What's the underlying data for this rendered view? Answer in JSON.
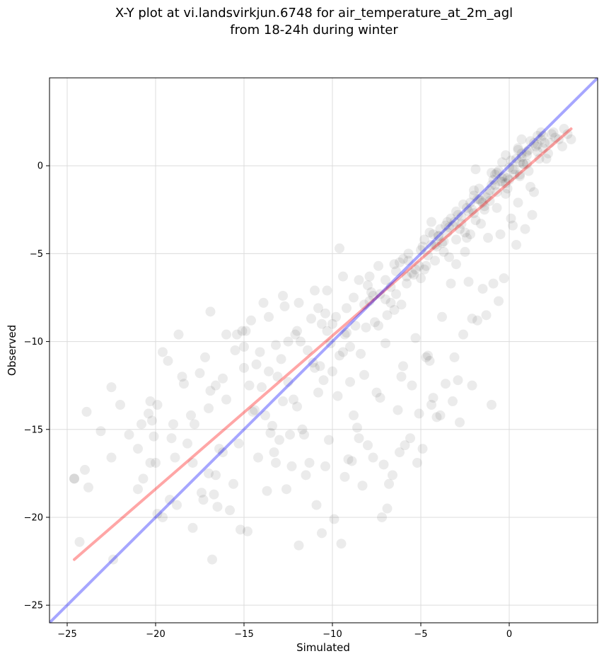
{
  "chart_data": {
    "type": "scatter",
    "title": [
      "X-Y plot at vi.landsvirkjun.6748 for air_temperature_at_2m_agl",
      "from 18-24h during winter"
    ],
    "xlabel": "Simulated",
    "ylabel": "Observed",
    "xlim": [
      -26,
      5
    ],
    "ylim": [
      -26,
      5
    ],
    "xticks": [
      -25,
      -20,
      -15,
      -10,
      -5,
      0
    ],
    "yticks": [
      -25,
      -20,
      -15,
      -10,
      -5,
      0
    ],
    "xtick_labels": [
      "−25",
      "−20",
      "−15",
      "−10",
      "−5",
      "0"
    ],
    "ytick_labels": [
      "−25",
      "−20",
      "−15",
      "−10",
      "−5",
      "0"
    ],
    "grid": true,
    "colors": {
      "points": "#000000",
      "fit_line": "#ff0000",
      "identity_line": "#0000ff",
      "grid": "#dcdcdc"
    },
    "series": [
      {
        "kind": "points",
        "x": [
          -24.6,
          -24.3,
          -24.0,
          -23.8,
          -23.1,
          -22.5,
          -22.5,
          -22.0,
          -21.5,
          -21.0,
          -20.7,
          -20.4,
          -20.0,
          -19.6,
          -19.3,
          -19.1,
          -18.8,
          -18.4,
          -18.0,
          -17.9,
          -17.4,
          -17.0,
          -16.8,
          -16.6,
          -16.5,
          -16.2,
          -21.0,
          -20.1,
          -19.2,
          -18.5,
          -17.8,
          -17.0,
          -16.2,
          -15.6,
          -15.0,
          -14.5,
          -14.0,
          -13.6,
          -13.2,
          -12.8,
          -12.5,
          -12.0,
          -11.6,
          -11.1,
          -10.8,
          -10.4,
          -10.1,
          -9.6,
          -9.2,
          -8.8,
          -8.2,
          -7.6,
          -7.3,
          -7.0,
          -6.5,
          -6.0,
          -5.8,
          -5.3,
          -4.8,
          -4.6,
          -4.2,
          -3.8,
          -3.5,
          -3.0,
          -2.5,
          -2.2,
          -1.9,
          -1.6,
          -1.1,
          -0.7,
          -0.4,
          -0.1,
          0.3,
          0.7,
          1.1,
          1.6,
          2.1,
          2.6,
          3.0,
          3.3,
          -19.0,
          -17.5,
          -16.0,
          -15.0,
          -14.1,
          -13.1,
          -12.0,
          -11.0,
          -10.0,
          -9.0,
          -8.1,
          -7.0,
          -6.1,
          -5.0,
          -4.0,
          -3.0,
          -2.0,
          -1.0,
          0.0,
          1.0,
          -22.4,
          -20.8,
          -19.9,
          -18.9,
          -17.3,
          -16.4,
          -15.3,
          -14.4,
          -13.4,
          -12.5,
          -11.4,
          -10.3,
          -9.4,
          -8.4,
          -7.4,
          -6.4,
          -5.4,
          -4.4,
          -3.4,
          -2.4,
          -1.4,
          -0.4,
          0.6,
          1.6,
          2.4,
          -20.3,
          -18.2,
          -16.9,
          -15.5,
          -14.7,
          -13.8,
          -12.9,
          -11.8,
          -10.7,
          -9.8,
          -8.7,
          -7.8,
          -6.7,
          -5.7,
          -4.7,
          -3.7,
          -2.7,
          -1.7,
          -0.7,
          0.3,
          -13.0,
          -12.2,
          -11.3,
          -10.5,
          -9.3,
          -8.5,
          -7.5,
          -6.3,
          -5.5,
          -4.5,
          -3.3,
          -2.3,
          -1.2,
          -0.2,
          0.8,
          1.8,
          -15.8,
          -14.2,
          -12.6,
          -11.7,
          -10.9,
          -9.9,
          -9.1,
          -8.3,
          -7.1,
          -6.2,
          -5.1,
          -4.1,
          -3.1,
          -2.1,
          -0.9,
          0.1,
          1.3,
          2.2,
          -17.9,
          -16.7,
          -15.2,
          -13.7,
          -12.3,
          -10.6,
          -9.5,
          -8.0,
          -6.8,
          -5.6,
          -4.3,
          -3.6,
          -2.6,
          -1.5,
          -0.5,
          0.5,
          1.4,
          2.8,
          -14.8,
          -13.3,
          -11.9,
          -10.2,
          -8.9,
          -7.7,
          -6.6,
          -5.2,
          -4.9,
          -3.9,
          -2.9,
          -1.8,
          -0.3,
          0.9,
          -12.4,
          -9.7,
          -8.6,
          -7.2,
          -6.9,
          -5.9,
          -4.4,
          -3.2,
          -2.1,
          -1.3,
          -0.6,
          0.4,
          1.2,
          -16.6,
          -15.4,
          -14.3,
          -13.5,
          -11.5,
          -10.0,
          -9.0,
          -7.9,
          -6.1,
          -4.7,
          -2.8,
          -1.0,
          0.2,
          1.9,
          -19.6,
          -18.7,
          -17.2,
          -16.0,
          -14.9,
          -13.9,
          -12.7,
          -11.2,
          -10.3,
          -9.6,
          -8.5,
          -7.4,
          -6.4,
          -5.3,
          -4.0,
          -2.5,
          -1.6,
          -0.8,
          0.6,
          1.7,
          3.1,
          -16.9,
          -12.1,
          -10.4,
          -9.2,
          -7.3,
          -6.7,
          -4.2,
          -3.4,
          -2.2,
          -0.1,
          1.0,
          2.0,
          -15.1,
          -13.6,
          -11.9,
          -8.8,
          -8.0,
          -5.7,
          -5.0,
          -3.7,
          -2.4,
          -1.4,
          -0.5,
          0.7,
          -14.6,
          -12.8,
          -11.0,
          -9.4,
          -7.7,
          -6.5,
          -4.9,
          -3.1,
          -1.9,
          -0.2,
          1.5,
          -13.2,
          -10.8,
          -8.2,
          -6.0,
          -4.5,
          -2.7,
          -1.1,
          0.0,
          1.1,
          2.5,
          -9.3,
          -7.0,
          -5.5,
          -4.1,
          -3.3,
          -2.0,
          -0.6,
          0.5,
          1.4,
          -6.9,
          -5.8,
          -4.6,
          -3.5,
          -2.3,
          -1.3,
          -0.4,
          0.8,
          1.9,
          -10.6,
          -7.9,
          -6.2,
          -4.8,
          -3.6,
          -2.6,
          -1.7,
          -0.7,
          0.4,
          1.6,
          -3.9,
          -2.9,
          -1.8,
          -0.9,
          0.1,
          1.2,
          -4.4,
          -3.2,
          -2.1,
          -1.2,
          -0.3,
          0.6,
          2.3,
          -5.1,
          -3.8,
          -2.8,
          -1.5,
          -0.8,
          0.2,
          1.0,
          -4.3,
          -3.0,
          -2.0,
          -1.0,
          -0.2,
          0.7,
          1.8,
          3.5,
          0.5,
          -20.3,
          -19.9,
          -20.2,
          -23.9,
          -24.6
        ],
        "y": [
          -17.8,
          -21.4,
          -17.3,
          -18.3,
          -15.1,
          -12.6,
          -16.6,
          -13.6,
          -15.3,
          -16.1,
          -17.8,
          -14.1,
          -16.9,
          -20.0,
          -11.1,
          -15.5,
          -19.3,
          -12.4,
          -14.2,
          -16.9,
          -18.6,
          -13.8,
          -22.4,
          -17.6,
          -19.4,
          -16.3,
          -18.4,
          -15.4,
          -19.0,
          -12.0,
          -14.7,
          -17.5,
          -12.1,
          -18.1,
          -10.3,
          -14.0,
          -12.6,
          -11.7,
          -16.9,
          -13.4,
          -10.0,
          -13.7,
          -15.3,
          -11.2,
          -12.9,
          -17.1,
          -10.1,
          -10.8,
          -9.5,
          -14.2,
          -11.9,
          -8.9,
          -13.2,
          -10.1,
          -8.2,
          -11.4,
          -6.3,
          -9.8,
          -5.9,
          -10.8,
          -4.5,
          -8.6,
          -3.2,
          -5.6,
          -4.9,
          -2.1,
          -0.2,
          -3.3,
          -1.4,
          -2.4,
          0.2,
          -1.3,
          -0.5,
          0.7,
          -0.3,
          1.2,
          0.4,
          1.6,
          1.1,
          1.8,
          -14.7,
          -11.8,
          -13.3,
          -11.5,
          -10.6,
          -12.0,
          -9.4,
          -11.5,
          -9.0,
          -10.3,
          -9.2,
          -6.5,
          -7.9,
          -4.8,
          -4.0,
          -4.2,
          -2.7,
          -1.1,
          -0.8,
          0.1,
          -22.4,
          -14.7,
          -13.6,
          -16.6,
          -19.0,
          -16.1,
          -15.8,
          -13.9,
          -14.8,
          -12.3,
          -10.5,
          -9.4,
          -10.6,
          -10.7,
          -9.1,
          -7.3,
          -6.2,
          -3.2,
          -3.5,
          -2.4,
          -2.5,
          -0.7,
          -0.5,
          0.8,
          1.8,
          -13.4,
          -15.8,
          -12.8,
          -10.5,
          -12.5,
          -14.2,
          -11.0,
          -10.0,
          -11.4,
          -8.6,
          -9.1,
          -7.2,
          -7.8,
          -5.0,
          -5.7,
          -4.9,
          -2.9,
          -1.9,
          -1.5,
          -0.2,
          -15.6,
          -13.3,
          -16.9,
          -12.2,
          -17.7,
          -15.5,
          -12.9,
          -13.9,
          -12.5,
          -11.1,
          -6.7,
          -6.6,
          -4.1,
          -1.0,
          0.1,
          1.5,
          -19.6,
          -16.6,
          -18.4,
          -15.0,
          -19.3,
          -20.1,
          -16.7,
          -18.2,
          -17.0,
          -16.3,
          -14.1,
          -14.3,
          -10.9,
          -8.7,
          -6.7,
          -3.0,
          -2.8,
          0.7,
          -20.6,
          -18.7,
          -20.7,
          -18.5,
          -17.1,
          -20.9,
          -21.5,
          -15.9,
          -18.1,
          -15.5,
          -13.2,
          -12.4,
          -9.6,
          -7.0,
          -3.9,
          -2.1,
          -1.5,
          1.5,
          -20.8,
          -16.3,
          -21.6,
          -15.6,
          -16.8,
          -16.6,
          -17.6,
          -16.9,
          -16.1,
          -14.2,
          -12.2,
          -8.8,
          -6.4,
          -3.6,
          -15.3,
          -13.1,
          -14.9,
          -20.0,
          -19.5,
          -15.9,
          -13.6,
          -13.4,
          -12.5,
          -8.5,
          -7.7,
          -4.5,
          -1.2,
          -12.5,
          -9.6,
          -11.3,
          -15.2,
          -17.6,
          -11.7,
          -12.3,
          -7.7,
          -12.0,
          -10.9,
          -14.6,
          -13.6,
          -3.4,
          1.7,
          -10.6,
          -9.6,
          -10.9,
          -9.6,
          -9.4,
          -7.8,
          -8.0,
          -8.7,
          -7.1,
          -4.7,
          -6.5,
          -5.7,
          -6.0,
          -5.9,
          -4.0,
          -3.8,
          -2.0,
          -0.5,
          -0.6,
          0.4,
          2.1,
          -8.3,
          -9.6,
          -8.4,
          -8.1,
          -7.3,
          -6.9,
          -5.4,
          -5.2,
          -3.9,
          -0.7,
          0.6,
          1.3,
          -9.4,
          -8.6,
          -7.8,
          -7.5,
          -6.8,
          -5.4,
          -6.4,
          -4.3,
          -4.1,
          -2.3,
          -0.9,
          0.5,
          -8.8,
          -7.4,
          -7.1,
          -6.3,
          -7.4,
          -5.6,
          -4.6,
          -3.2,
          -3.1,
          -1.6,
          1.1,
          -10.2,
          -8.1,
          -7.9,
          -5.3,
          -3.8,
          -3.3,
          -2.0,
          -0.1,
          0.9,
          1.9,
          -9.6,
          -7.6,
          -6.1,
          -4.6,
          -3.0,
          -1.7,
          -0.3,
          1.0,
          1.3,
          -8.5,
          -6.7,
          -5.1,
          -3.8,
          -2.6,
          -1.8,
          -0.9,
          0.1,
          1.0,
          -9.0,
          -6.3,
          -5.5,
          -4.2,
          -3.4,
          -2.2,
          -1.3,
          -0.4,
          0.4,
          1.7,
          -3.6,
          -2.8,
          -1.9,
          -0.8,
          0.3,
          1.4,
          -4.5,
          -3.4,
          -2.5,
          -1.6,
          -0.6,
          0.2,
          1.3,
          -5.7,
          -4.4,
          -3.6,
          -2.1,
          -1.1,
          -0.2,
          0.8,
          -3.9,
          -2.6,
          -1.4,
          -0.4,
          0.6,
          1.5,
          1.9,
          1.5,
          0.9,
          -16.9,
          -19.8,
          -14.5,
          -14.0,
          -17.8
        ],
        "color": "#000000",
        "alpha": 0.08
      },
      {
        "kind": "line",
        "x": [
          -24.6,
          3.5
        ],
        "y": [
          -22.4,
          2.1
        ],
        "color": "#ff0000",
        "alpha": 0.35
      },
      {
        "kind": "line",
        "x": [
          -26,
          5
        ],
        "y": [
          -26,
          5
        ],
        "color": "#0000ff",
        "alpha": 0.35
      }
    ]
  }
}
